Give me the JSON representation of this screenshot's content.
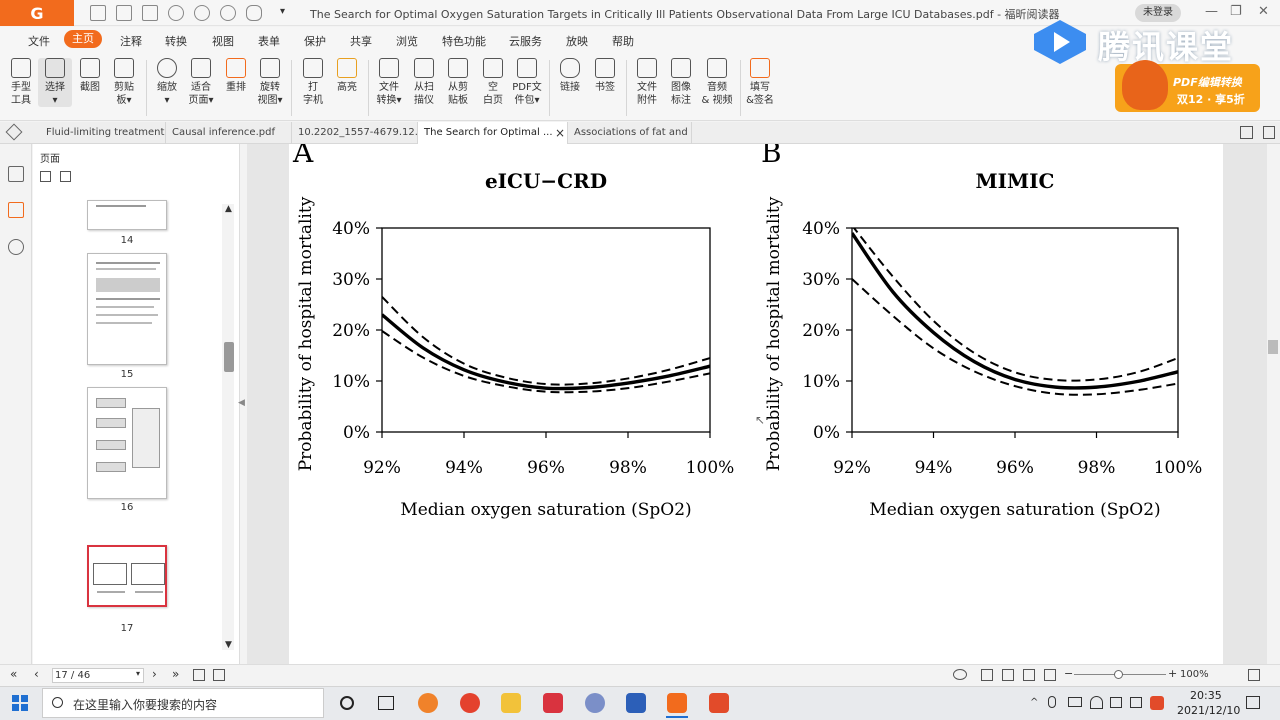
{
  "titlebar": {
    "app_logo": "G",
    "document_title": "The Search for Optimal Oxygen Saturation Targets in Critically Ill Patients Observational Data From Large ICU Databases.pdf - 福昕阅读器",
    "login_label": "未登录"
  },
  "menu": [
    "文件",
    "主页",
    "注释",
    "转换",
    "视图",
    "表单",
    "保护",
    "共享",
    "浏览",
    "特色功能",
    "云服务",
    "放映",
    "帮助"
  ],
  "ribbon": {
    "tools": [
      {
        "label": "手型\n工具",
        "icon": "hand-icon"
      },
      {
        "label": "选择\n▾",
        "icon": "select-text-icon"
      },
      {
        "label": "截图",
        "icon": "screenshot-icon"
      },
      {
        "label": "剪贴\n板▾",
        "icon": "clipboard-icon"
      },
      {
        "label": "缩放\n▾",
        "icon": "zoom-icon"
      },
      {
        "label": "适合\n页面▾",
        "icon": "fit-page-icon"
      },
      {
        "label": "重排",
        "icon": "reflow-icon"
      },
      {
        "label": "旋转\n视图▾",
        "icon": "rotate-icon"
      },
      {
        "label": "打\n字机",
        "icon": "typewriter-icon"
      },
      {
        "label": "高亮",
        "icon": "highlight-icon"
      },
      {
        "label": "文件\n转换▾",
        "icon": "file-convert-icon"
      },
      {
        "label": "从扫\n描仪",
        "icon": "scanner-icon"
      },
      {
        "label": "从剪\n贴板",
        "icon": "from-clipboard-icon"
      },
      {
        "label": "空\n白页",
        "icon": "blank-page-icon"
      },
      {
        "label": "PDF文\n件包▾",
        "icon": "pdf-package-icon"
      },
      {
        "label": "链接",
        "icon": "link-icon"
      },
      {
        "label": "书签",
        "icon": "bookmark-icon"
      },
      {
        "label": "文件\n附件",
        "icon": "attachment-icon"
      },
      {
        "label": "图像\n标注",
        "icon": "image-annotation-icon"
      },
      {
        "label": "音频\n& 视频",
        "icon": "video-icon"
      },
      {
        "label": "填写\n&签名",
        "icon": "fill-sign-icon"
      }
    ]
  },
  "watermark": {
    "text": "腾讯课堂"
  },
  "promo": {
    "line1": "PDF编辑转换",
    "line2": "双12 · 享5折"
  },
  "tabs": [
    {
      "label": "Fluid-limiting treatment s..."
    },
    {
      "label": "Causal inference.pdf"
    },
    {
      "label": "10.2202_1557-4679.12..."
    },
    {
      "label": "The Search for Optimal ..."
    },
    {
      "label": "Associations of fat and ..."
    }
  ],
  "tab_close": "×",
  "panel": {
    "title": "页面",
    "pages": [
      "14",
      "15",
      "16",
      "17"
    ]
  },
  "figure": {
    "panel_a_letter": "A",
    "panel_b_letter": "B",
    "y_ticks": [
      "40%",
      "30%",
      "20%",
      "10%",
      "0%"
    ],
    "x_ticks": [
      "92%",
      "94%",
      "96%",
      "98%",
      "100%"
    ]
  },
  "chart_data": [
    {
      "type": "line",
      "title": "eICU−CRD",
      "xlabel": "Median oxygen saturation (SpO2)",
      "ylabel": "Probability of hospital mortality",
      "xlim": [
        92,
        100
      ],
      "ylim": [
        0,
        40
      ],
      "x": [
        92,
        93,
        94,
        95,
        96,
        97,
        98,
        99,
        100
      ],
      "series": [
        {
          "style": "solid",
          "values": [
            23.0,
            16.5,
            12.2,
            9.8,
            8.6,
            8.7,
            9.6,
            11.0,
            12.9
          ]
        },
        {
          "style": "dashed",
          "values": [
            26.5,
            18.6,
            13.4,
            10.7,
            9.4,
            9.5,
            10.5,
            12.2,
            14.5
          ]
        },
        {
          "style": "dashed",
          "values": [
            19.8,
            14.6,
            11.0,
            9.0,
            7.9,
            7.9,
            8.6,
            9.9,
            11.5
          ]
        }
      ]
    },
    {
      "type": "line",
      "title": "MIMIC",
      "xlabel": "Median oxygen saturation (SpO2)",
      "ylabel": "Probability of hospital mortality",
      "xlim": [
        92,
        100
      ],
      "ylim": [
        0,
        40
      ],
      "x": [
        92,
        93,
        94,
        95,
        96,
        97,
        98,
        99,
        100
      ],
      "series": [
        {
          "style": "solid",
          "values": [
            39.0,
            27.5,
            19.5,
            13.8,
            10.3,
            8.8,
            8.8,
            9.9,
            11.8
          ]
        },
        {
          "style": "dashed",
          "values": [
            40.5,
            30.5,
            21.8,
            15.5,
            11.7,
            10.2,
            10.3,
            11.7,
            14.5
          ]
        },
        {
          "style": "dashed",
          "values": [
            30.0,
            22.8,
            16.4,
            11.9,
            9.0,
            7.5,
            7.4,
            8.2,
            9.5
          ]
        }
      ]
    }
  ],
  "statusbar": {
    "page_indicator": "17 / 46",
    "zoom": "100%"
  },
  "taskbar": {
    "search_placeholder": "在这里输入你要搜索的内容",
    "time": "20:35",
    "date": "2021/12/10"
  }
}
